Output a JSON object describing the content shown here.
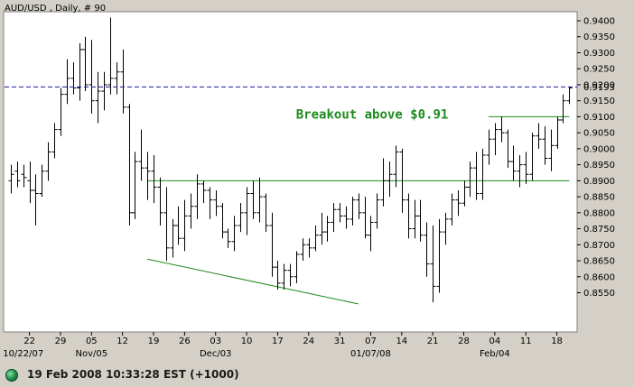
{
  "chart_data": {
    "type": "ohlc",
    "title": "AUD/USD , Daily, # 90",
    "ylim": [
      0.8485,
      0.943
    ],
    "xlim": [
      0,
      90
    ],
    "y_ticks": [
      "0.9400",
      "0.9350",
      "0.9300",
      "0.9250",
      "0.9200",
      "0.9150",
      "0.9100",
      "0.9050",
      "0.9000",
      "0.8950",
      "0.8900",
      "0.8850",
      "0.8800",
      "0.8750",
      "0.8700",
      "0.8650",
      "0.8600",
      "0.8550"
    ],
    "x_ticks": [
      {
        "label": "22",
        "x": 3
      },
      {
        "label": "29",
        "x": 8
      },
      {
        "label": "05",
        "x": 13
      },
      {
        "label": "12",
        "x": 18
      },
      {
        "label": "19",
        "x": 23
      },
      {
        "label": "26",
        "x": 28
      },
      {
        "label": "03",
        "x": 33
      },
      {
        "label": "10",
        "x": 38
      },
      {
        "label": "17",
        "x": 43
      },
      {
        "label": "24",
        "x": 48
      },
      {
        "label": "31",
        "x": 53
      },
      {
        "label": "07",
        "x": 58
      },
      {
        "label": "14",
        "x": 63
      },
      {
        "label": "21",
        "x": 68
      },
      {
        "label": "28",
        "x": 73
      },
      {
        "label": "04",
        "x": 78
      },
      {
        "label": "11",
        "x": 83
      },
      {
        "label": "18",
        "x": 88
      }
    ],
    "month_labels": [
      {
        "label": "10/22/07",
        "x": 2
      },
      {
        "label": "Nov/05",
        "x": 13
      },
      {
        "label": "Dec/03",
        "x": 33
      },
      {
        "label": "01/07/08",
        "x": 58
      },
      {
        "label": "Feb/04",
        "x": 78
      }
    ],
    "bars": [
      [
        0.89,
        0.895,
        0.886,
        0.892
      ],
      [
        0.893,
        0.896,
        0.888,
        0.89
      ],
      [
        0.892,
        0.895,
        0.888,
        0.891
      ],
      [
        0.89,
        0.896,
        0.883,
        0.887
      ],
      [
        0.887,
        0.892,
        0.876,
        0.886
      ],
      [
        0.886,
        0.895,
        0.885,
        0.893
      ],
      [
        0.893,
        0.902,
        0.89,
        0.899
      ],
      [
        0.899,
        0.908,
        0.897,
        0.906
      ],
      [
        0.906,
        0.919,
        0.904,
        0.917
      ],
      [
        0.917,
        0.928,
        0.914,
        0.922
      ],
      [
        0.922,
        0.927,
        0.917,
        0.919
      ],
      [
        0.919,
        0.933,
        0.915,
        0.931
      ],
      [
        0.931,
        0.935,
        0.918,
        0.92
      ],
      [
        0.92,
        0.934,
        0.911,
        0.915
      ],
      [
        0.915,
        0.924,
        0.908,
        0.918
      ],
      [
        0.918,
        0.924,
        0.912,
        0.92
      ],
      [
        0.92,
        0.941,
        0.917,
        0.922
      ],
      [
        0.922,
        0.927,
        0.917,
        0.924
      ],
      [
        0.924,
        0.931,
        0.911,
        0.913
      ],
      [
        0.913,
        0.914,
        0.876,
        0.88
      ],
      [
        0.88,
        0.899,
        0.878,
        0.896
      ],
      [
        0.896,
        0.906,
        0.89,
        0.894
      ],
      [
        0.894,
        0.899,
        0.884,
        0.893
      ],
      [
        0.893,
        0.898,
        0.883,
        0.888
      ],
      [
        0.888,
        0.891,
        0.876,
        0.88
      ],
      [
        0.88,
        0.888,
        0.865,
        0.869
      ],
      [
        0.869,
        0.878,
        0.866,
        0.876
      ],
      [
        0.876,
        0.882,
        0.87,
        0.872
      ],
      [
        0.872,
        0.884,
        0.868,
        0.879
      ],
      [
        0.879,
        0.886,
        0.875,
        0.882
      ],
      [
        0.882,
        0.892,
        0.878,
        0.889
      ],
      [
        0.889,
        0.89,
        0.883,
        0.887
      ],
      [
        0.887,
        0.888,
        0.878,
        0.884
      ],
      [
        0.884,
        0.887,
        0.879,
        0.882
      ],
      [
        0.882,
        0.883,
        0.872,
        0.874
      ],
      [
        0.874,
        0.875,
        0.869,
        0.871
      ],
      [
        0.871,
        0.879,
        0.868,
        0.876
      ],
      [
        0.876,
        0.883,
        0.874,
        0.88
      ],
      [
        0.88,
        0.888,
        0.873,
        0.886
      ],
      [
        0.886,
        0.89,
        0.878,
        0.88
      ],
      [
        0.88,
        0.891,
        0.877,
        0.885
      ],
      [
        0.885,
        0.886,
        0.874,
        0.876
      ],
      [
        0.876,
        0.88,
        0.86,
        0.863
      ],
      [
        0.863,
        0.865,
        0.856,
        0.858
      ],
      [
        0.858,
        0.864,
        0.856,
        0.862
      ],
      [
        0.862,
        0.864,
        0.857,
        0.86
      ],
      [
        0.86,
        0.868,
        0.858,
        0.867
      ],
      [
        0.867,
        0.872,
        0.865,
        0.87
      ],
      [
        0.87,
        0.872,
        0.866,
        0.869
      ],
      [
        0.869,
        0.876,
        0.868,
        0.873
      ],
      [
        0.873,
        0.88,
        0.87,
        0.874
      ],
      [
        0.874,
        0.879,
        0.871,
        0.877
      ],
      [
        0.877,
        0.883,
        0.874,
        0.881
      ],
      [
        0.881,
        0.883,
        0.877,
        0.879
      ],
      [
        0.879,
        0.882,
        0.875,
        0.878
      ],
      [
        0.878,
        0.885,
        0.876,
        0.884
      ],
      [
        0.884,
        0.886,
        0.878,
        0.88
      ],
      [
        0.88,
        0.885,
        0.872,
        0.873
      ],
      [
        0.873,
        0.879,
        0.868,
        0.877
      ],
      [
        0.877,
        0.886,
        0.875,
        0.884
      ],
      [
        0.884,
        0.897,
        0.882,
        0.89
      ],
      [
        0.89,
        0.896,
        0.885,
        0.892
      ],
      [
        0.892,
        0.901,
        0.888,
        0.899
      ],
      [
        0.899,
        0.9,
        0.88,
        0.884
      ],
      [
        0.884,
        0.886,
        0.872,
        0.875
      ],
      [
        0.875,
        0.884,
        0.872,
        0.879
      ],
      [
        0.879,
        0.884,
        0.871,
        0.873
      ],
      [
        0.873,
        0.877,
        0.86,
        0.864
      ],
      [
        0.864,
        0.876,
        0.852,
        0.857
      ],
      [
        0.857,
        0.878,
        0.855,
        0.874
      ],
      [
        0.874,
        0.88,
        0.87,
        0.878
      ],
      [
        0.878,
        0.886,
        0.876,
        0.884
      ],
      [
        0.884,
        0.887,
        0.879,
        0.883
      ],
      [
        0.883,
        0.89,
        0.882,
        0.888
      ],
      [
        0.888,
        0.896,
        0.885,
        0.894
      ],
      [
        0.894,
        0.899,
        0.884,
        0.886
      ],
      [
        0.886,
        0.9,
        0.884,
        0.898
      ],
      [
        0.898,
        0.906,
        0.895,
        0.903
      ],
      [
        0.903,
        0.908,
        0.898,
        0.906
      ],
      [
        0.906,
        0.91,
        0.902,
        0.905
      ],
      [
        0.905,
        0.906,
        0.894,
        0.896
      ],
      [
        0.896,
        0.901,
        0.89,
        0.893
      ],
      [
        0.893,
        0.898,
        0.888,
        0.895
      ],
      [
        0.895,
        0.899,
        0.889,
        0.892
      ],
      [
        0.892,
        0.905,
        0.89,
        0.904
      ],
      [
        0.904,
        0.908,
        0.9,
        0.903
      ],
      [
        0.903,
        0.907,
        0.895,
        0.897
      ],
      [
        0.897,
        0.906,
        0.893,
        0.901
      ],
      [
        0.901,
        0.91,
        0.9,
        0.909
      ],
      [
        0.909,
        0.917,
        0.908,
        0.915
      ],
      [
        0.915,
        0.9193,
        0.914,
        0.919
      ]
    ],
    "current_price": 0.9193,
    "current_price_label": "0.9193",
    "current_line_color": "#1a1aa0",
    "trend_color": "#1e8b1e",
    "trendlines": [
      {
        "name": "resistance-neckline",
        "x1": 22,
        "y1": 0.89,
        "x2": 90,
        "y2": 0.89
      },
      {
        "name": "breakout-level",
        "x1": 77,
        "y1": 0.91,
        "x2": 90,
        "y2": 0.91
      },
      {
        "name": "support-trendline",
        "x1": 22,
        "y1": 0.8655,
        "x2": 56,
        "y2": 0.8515
      }
    ],
    "annotation": {
      "text": "Breakout above $0.91",
      "x": 48,
      "y": 0.91
    }
  },
  "status": {
    "text": "19 Feb 2008 10:33:28  EST (+1000)",
    "indicator_color": "#1f8a4a"
  }
}
